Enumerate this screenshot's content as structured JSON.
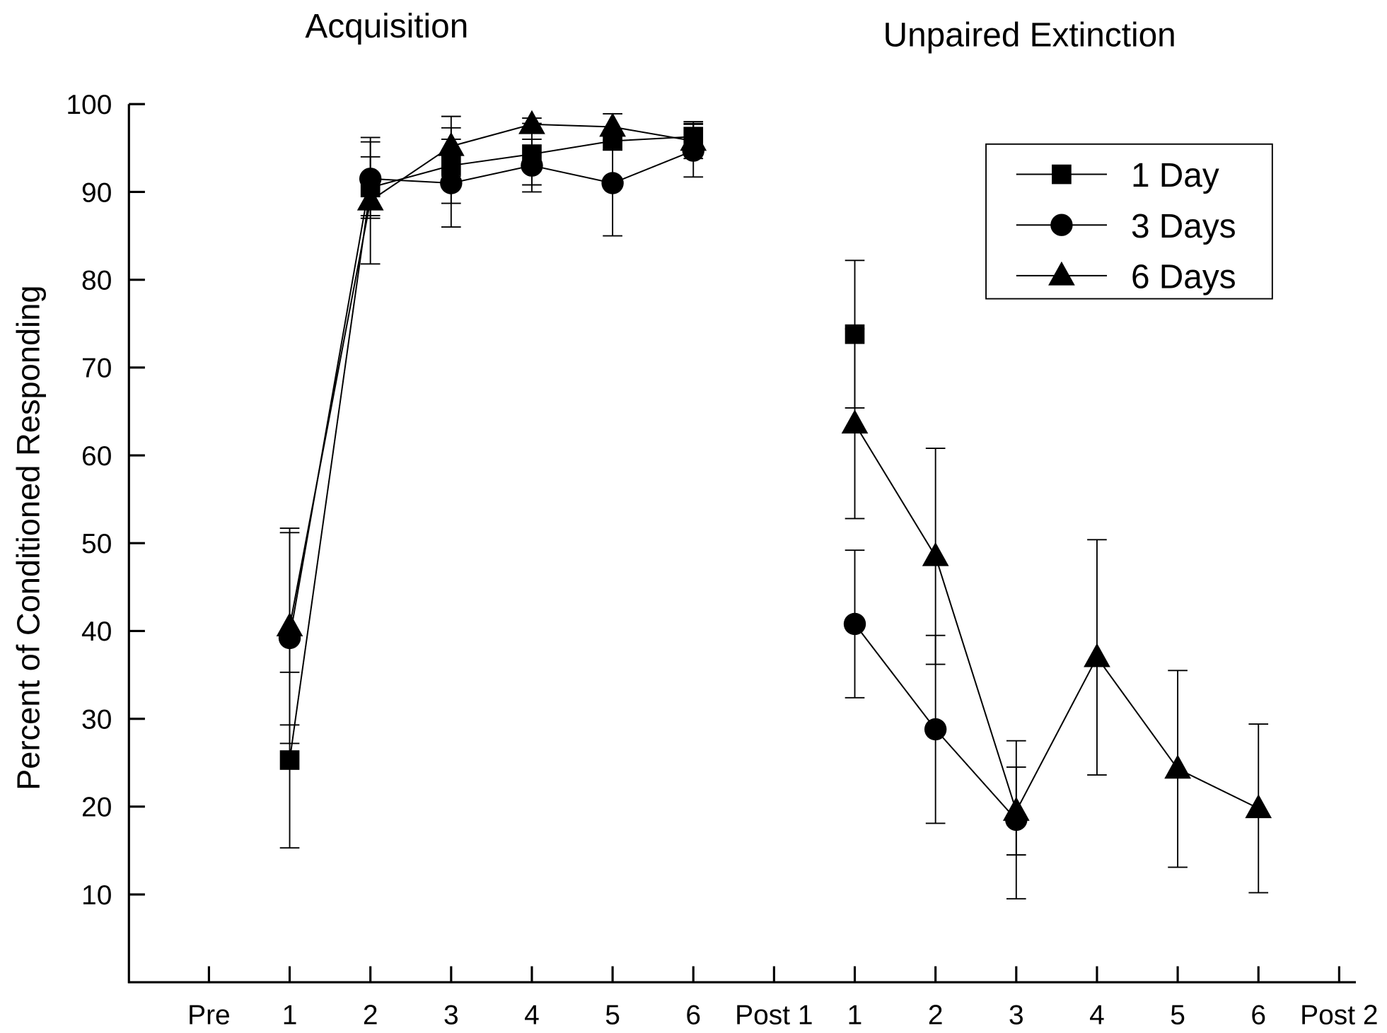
{
  "chart_data": {
    "type": "line",
    "panel_titles": [
      "Acquisition",
      "Unpaired Extinction"
    ],
    "ylabel": "Percent of Conditioned Responding",
    "xlabel": "",
    "ylim": [
      0,
      100
    ],
    "yticks": [
      10,
      20,
      30,
      40,
      50,
      60,
      70,
      80,
      90,
      100
    ],
    "categories": [
      "Pre",
      "1",
      "2",
      "3",
      "4",
      "5",
      "6",
      "Post 1",
      "1",
      "2",
      "3",
      "4",
      "5",
      "6",
      "Post 2"
    ],
    "segments": [
      [
        1,
        6
      ],
      [
        8,
        13
      ]
    ],
    "legend_position": "top-right",
    "grid": false,
    "series": [
      {
        "name": "1 Day",
        "marker": "square",
        "values": [
          null,
          25.3,
          90.5,
          93.0,
          94.3,
          95.8,
          96.3,
          null,
          73.8,
          null,
          null,
          null,
          null,
          null,
          null
        ],
        "errors": [
          null,
          10.0,
          3.5,
          4.3,
          3.5,
          1.0,
          1.7,
          null,
          8.4,
          null,
          null,
          null,
          null,
          null,
          null
        ]
      },
      {
        "name": "3 Days",
        "marker": "circle",
        "values": [
          null,
          39.2,
          91.5,
          91.0,
          93.0,
          91.0,
          94.7,
          null,
          40.8,
          28.8,
          18.5,
          null,
          null,
          null,
          null
        ],
        "errors": [
          null,
          12.0,
          4.2,
          5.0,
          3.0,
          6.0,
          3.0,
          null,
          8.4,
          10.7,
          9.0,
          null,
          null,
          null,
          null
        ]
      },
      {
        "name": "6 Days",
        "marker": "triangle",
        "values": [
          null,
          40.5,
          89.0,
          95.2,
          97.7,
          97.4,
          95.8,
          null,
          63.6,
          48.5,
          19.5,
          37.0,
          24.3,
          19.8,
          null
        ],
        "errors": [
          null,
          11.2,
          7.2,
          3.4,
          0.7,
          1.5,
          2.0,
          null,
          10.8,
          12.3,
          5.0,
          13.4,
          11.2,
          9.6,
          null
        ]
      }
    ]
  }
}
